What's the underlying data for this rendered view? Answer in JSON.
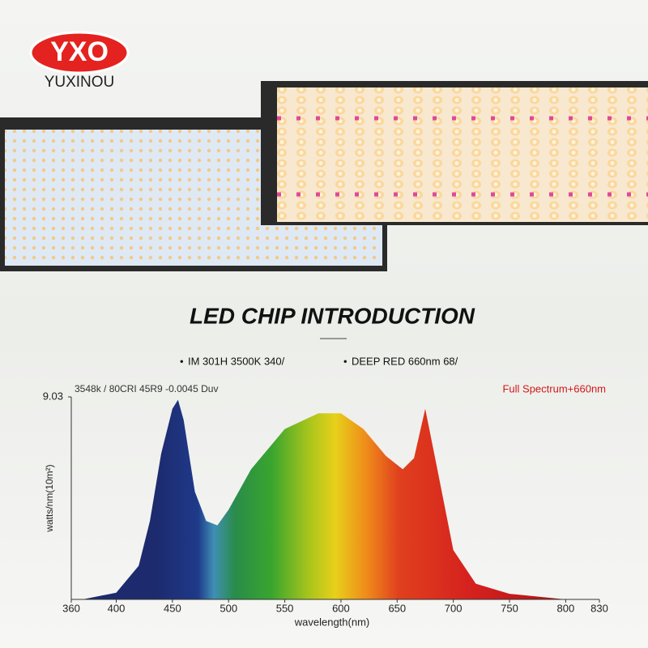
{
  "brand": {
    "logo": "YXO",
    "name": "YUXINOU"
  },
  "heading": "LED CHIP INTRODUCTION",
  "chips": [
    "IM 301H 3500K 340/",
    "DEEP RED 660nm 68/"
  ],
  "chart_data": {
    "type": "area",
    "subtitle": "3548k / 80CRI 45R9 -0.0045 Duv",
    "annotation": "Full Spectrum+660nm",
    "xlabel": "wavelength(nm)",
    "ylabel": "watts/nm(10m²)",
    "x": [
      370,
      400,
      420,
      430,
      440,
      450,
      455,
      460,
      470,
      480,
      490,
      500,
      520,
      550,
      580,
      600,
      620,
      640,
      655,
      665,
      675,
      685,
      700,
      720,
      750,
      800
    ],
    "values": [
      0,
      0.3,
      1.5,
      3.5,
      6.5,
      8.5,
      8.9,
      8.0,
      4.8,
      3.5,
      3.3,
      4.0,
      5.8,
      7.6,
      8.3,
      8.3,
      7.6,
      6.4,
      5.8,
      6.3,
      8.5,
      6.0,
      2.2,
      0.7,
      0.25,
      0
    ],
    "xlim": [
      360,
      830
    ],
    "xticks": [
      360,
      400,
      450,
      500,
      550,
      600,
      650,
      700,
      750,
      800,
      830
    ],
    "ylim": [
      0,
      9.03
    ],
    "yticks": [
      9.03
    ]
  }
}
